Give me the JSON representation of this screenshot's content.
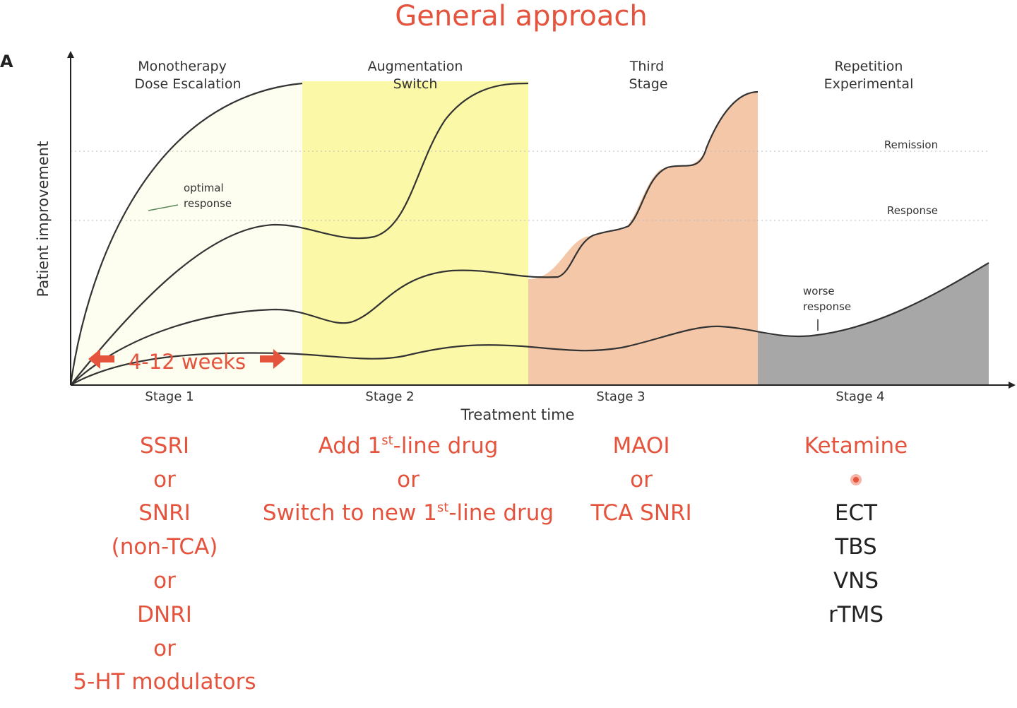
{
  "title": "General approach",
  "panel_letter": "A",
  "y_axis_label": "Patient improvement",
  "x_axis_label": "Treatment time",
  "stage_headers": [
    {
      "line1": "Monotherapy",
      "line2": "Dose Escalation"
    },
    {
      "line1": "Augmentation",
      "line2": "Switch"
    },
    {
      "line1": "Third",
      "line2": "Stage"
    },
    {
      "line1": "Repetition",
      "line2": "Experimental"
    }
  ],
  "stage_labels": [
    "Stage 1",
    "Stage 2",
    "Stage 3",
    "Stage 4"
  ],
  "reference_lines": {
    "remission": "Remission",
    "response": "Response"
  },
  "annotations": {
    "optimal_line1": "optimal",
    "optimal_line2": "response",
    "worse_line1": "worse",
    "worse_line2": "response",
    "weeks": "4-12 weeks"
  },
  "stage_colors": [
    "#fdfdf0",
    "#fbf8a8",
    "#f3c7a8",
    "#a7a7a7"
  ],
  "treatments": {
    "stage1": [
      "SSRI",
      "or",
      "SNRI",
      "(non-TCA)",
      "or",
      "DNRI",
      "or",
      "5-HT modulators"
    ],
    "stage2": {
      "line1_pre": "Add 1",
      "line1_sup": "st",
      "line1_post": "-line drug",
      "line2": "or",
      "line3_pre": "Switch to new 1",
      "line3_sup": "st",
      "line3_post": "-line drug"
    },
    "stage3": [
      "MAOI",
      "or",
      "TCA SNRI"
    ],
    "stage4_red": [
      "Ketamine"
    ],
    "stage4_black": [
      "ECT",
      "TBS",
      "VNS",
      "rTMS"
    ]
  }
}
